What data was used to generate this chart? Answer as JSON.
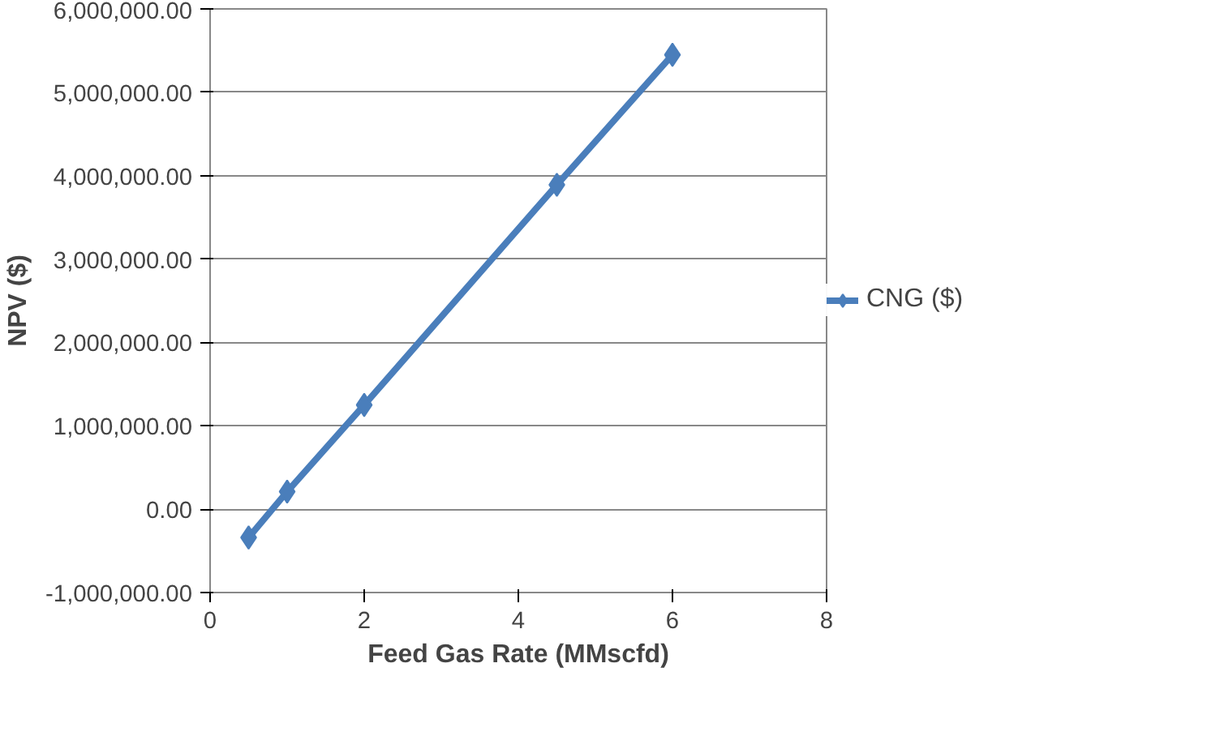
{
  "chart_data": {
    "type": "line",
    "xlabel": "Feed Gas Rate (MMscfd)",
    "ylabel": "NPV ($)",
    "x": [
      0.5,
      1,
      2,
      4.5,
      6
    ],
    "series": [
      {
        "name": "CNG ($)",
        "color": "#4a7ebb",
        "values": [
          -340000,
          210000,
          1250000,
          3890000,
          5450000
        ]
      }
    ],
    "xlim": [
      0,
      8
    ],
    "xticks": [
      0,
      2,
      4,
      6,
      8
    ],
    "ylim": [
      -1000000,
      6000000
    ],
    "yticks": [
      {
        "value": -1000000,
        "label": "-1,000,000.00"
      },
      {
        "value": 0,
        "label": "0.00"
      },
      {
        "value": 1000000,
        "label": "1,000,000.00"
      },
      {
        "value": 2000000,
        "label": "2,000,000.00"
      },
      {
        "value": 3000000,
        "label": "3,000,000.00"
      },
      {
        "value": 4000000,
        "label": "4,000,000.00"
      },
      {
        "value": 5000000,
        "label": "5,000,000.00"
      },
      {
        "value": 6000000,
        "label": "6,000,000.00"
      }
    ],
    "grid": "y",
    "legend": "right",
    "marker": "diamond",
    "line_style": "solid"
  }
}
